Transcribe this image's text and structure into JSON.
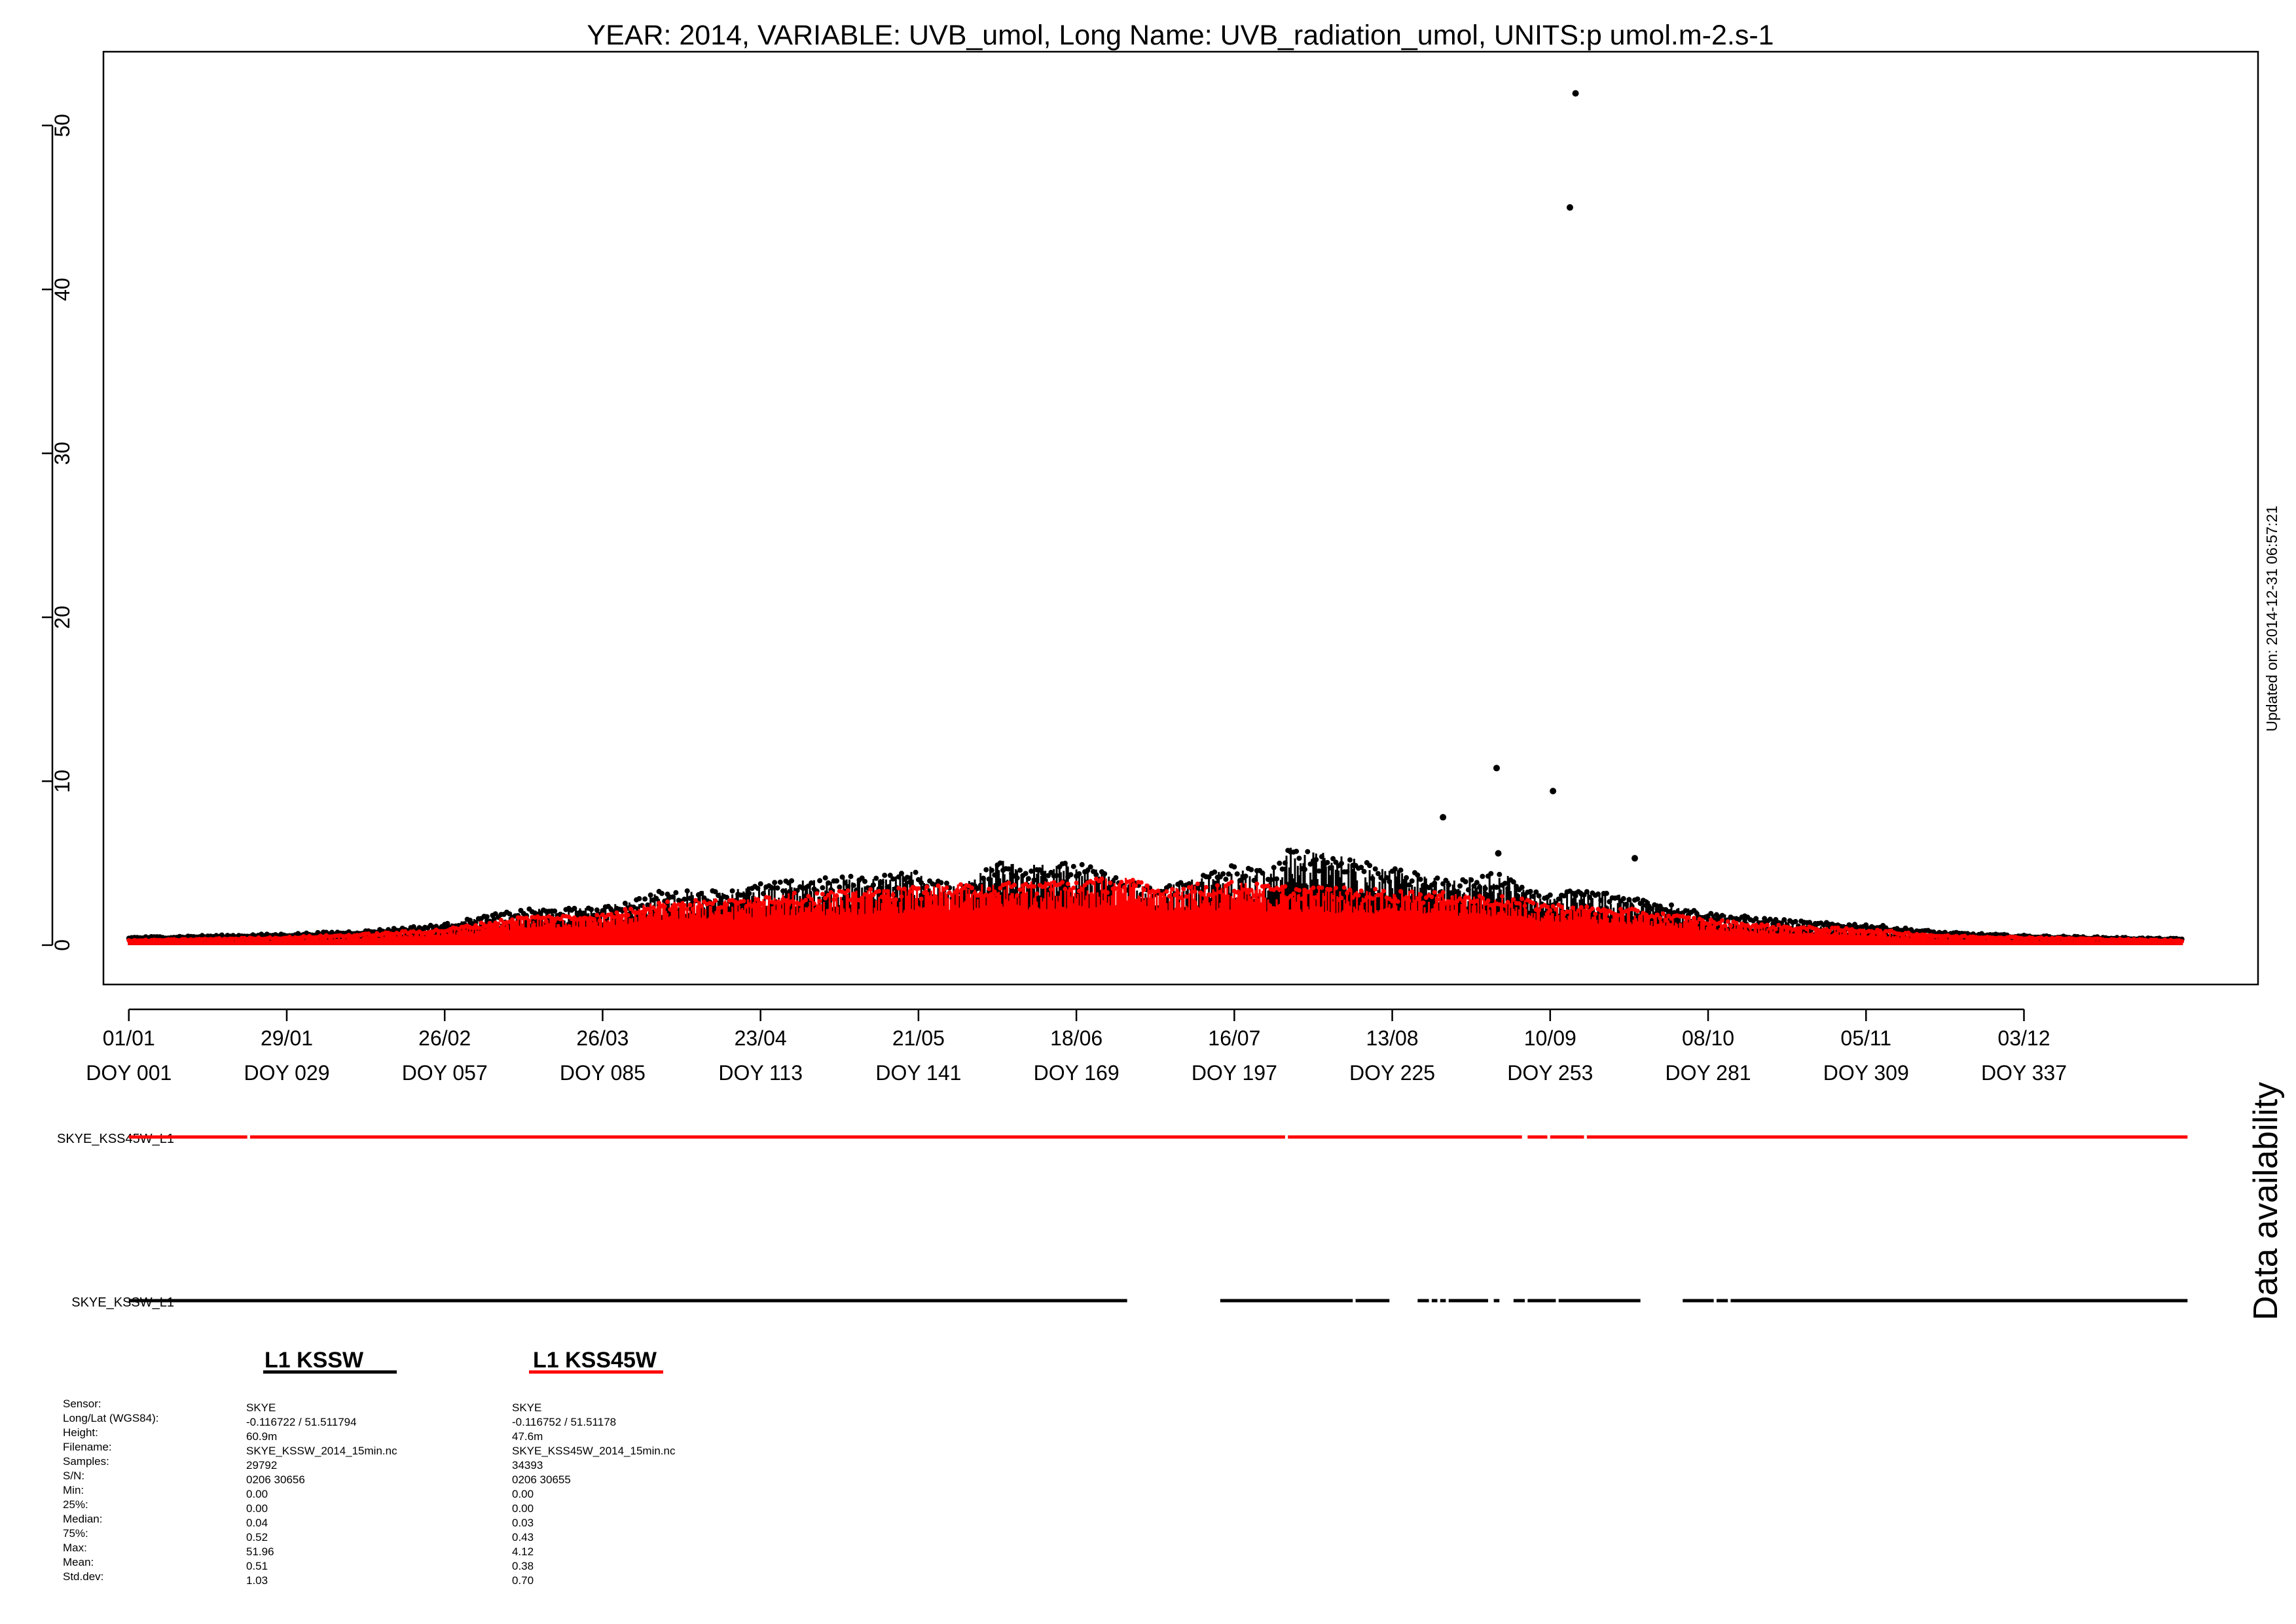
{
  "chart_data": {
    "type": "scatter",
    "title": "YEAR: 2014, VARIABLE: UVB_umol, Long Name: UVB_radiation_umol, UNITS:p umol.m-2.s-1",
    "updated": "Updated on: 2014-12-31 06:57:21",
    "ylim": [
      -2.4,
      54.5
    ],
    "yticks": [
      0,
      10,
      20,
      30,
      40,
      50
    ],
    "xlim": [
      -3.5,
      378.5
    ],
    "xticks": [
      {
        "doy": 1,
        "date": "01/01",
        "doy_label": "DOY 001"
      },
      {
        "doy": 29,
        "date": "29/01",
        "doy_label": "DOY 029"
      },
      {
        "doy": 57,
        "date": "26/02",
        "doy_label": "DOY 057"
      },
      {
        "doy": 85,
        "date": "26/03",
        "doy_label": "DOY 085"
      },
      {
        "doy": 113,
        "date": "23/04",
        "doy_label": "DOY 113"
      },
      {
        "doy": 141,
        "date": "21/05",
        "doy_label": "DOY 141"
      },
      {
        "doy": 169,
        "date": "18/06",
        "doy_label": "DOY 169"
      },
      {
        "doy": 197,
        "date": "16/07",
        "doy_label": "DOY 197"
      },
      {
        "doy": 225,
        "date": "13/08",
        "doy_label": "DOY 225"
      },
      {
        "doy": 253,
        "date": "10/09",
        "doy_label": "DOY 253"
      },
      {
        "doy": 281,
        "date": "08/10",
        "doy_label": "DOY 281"
      },
      {
        "doy": 309,
        "date": "05/11",
        "doy_label": "DOY 309"
      },
      {
        "doy": 337,
        "date": "03/12",
        "doy_label": "DOY 337"
      }
    ],
    "grid": false,
    "series": [
      {
        "name": "L1 KSSW",
        "color": "#000000",
        "daily_max_envelope": [
          [
            1,
            0.5
          ],
          [
            15,
            0.6
          ],
          [
            29,
            0.7
          ],
          [
            43,
            0.9
          ],
          [
            57,
            1.3
          ],
          [
            64,
            1.8
          ],
          [
            71,
            2.2
          ],
          [
            85,
            2.3
          ],
          [
            95,
            3.3
          ],
          [
            108,
            3.4
          ],
          [
            113,
            3.8
          ],
          [
            127,
            4.2
          ],
          [
            141,
            4.5
          ],
          [
            148,
            3.5
          ],
          [
            155,
            5.2
          ],
          [
            165,
            5.0
          ],
          [
            169,
            5.1
          ],
          [
            178,
            4.0
          ],
          [
            183,
            3.5
          ],
          [
            197,
            5.0
          ],
          [
            203,
            4.5
          ],
          [
            207,
            6.0
          ],
          [
            218,
            5.5
          ],
          [
            225,
            4.7
          ],
          [
            235,
            4.0
          ],
          [
            245,
            4.5
          ],
          [
            252,
            3.0
          ],
          [
            258,
            3.5
          ],
          [
            268,
            3.0
          ],
          [
            281,
            2.0
          ],
          [
            290,
            1.7
          ],
          [
            300,
            1.4
          ],
          [
            309,
            1.3
          ],
          [
            323,
            0.8
          ],
          [
            337,
            0.6
          ],
          [
            365,
            0.4
          ]
        ],
        "outliers": [
          [
            256.5,
            45.0
          ],
          [
            257.5,
            51.96
          ],
          [
            243.5,
            10.8
          ],
          [
            253.5,
            9.4
          ],
          [
            234.0,
            7.8
          ],
          [
            243.8,
            5.6
          ],
          [
            268.0,
            5.3
          ]
        ]
      },
      {
        "name": "L1 KSS45W",
        "color": "#ff0000",
        "daily_max_envelope": [
          [
            1,
            0.3
          ],
          [
            15,
            0.4
          ],
          [
            29,
            0.5
          ],
          [
            43,
            0.7
          ],
          [
            57,
            1.0
          ],
          [
            64,
            1.4
          ],
          [
            71,
            1.8
          ],
          [
            85,
            1.9
          ],
          [
            95,
            2.7
          ],
          [
            108,
            2.8
          ],
          [
            113,
            3.1
          ],
          [
            127,
            3.3
          ],
          [
            141,
            3.6
          ],
          [
            155,
            3.8
          ],
          [
            165,
            4.0
          ],
          [
            169,
            4.1
          ],
          [
            178,
            4.12
          ],
          [
            183,
            3.6
          ],
          [
            197,
            3.9
          ],
          [
            203,
            3.7
          ],
          [
            210,
            3.6
          ],
          [
            225,
            3.4
          ],
          [
            235,
            3.2
          ],
          [
            245,
            3.0
          ],
          [
            252,
            2.6
          ],
          [
            258,
            2.4
          ],
          [
            268,
            2.2
          ],
          [
            281,
            1.6
          ],
          [
            290,
            1.3
          ],
          [
            300,
            1.1
          ],
          [
            309,
            1.0
          ],
          [
            323,
            0.6
          ],
          [
            337,
            0.5
          ],
          [
            365,
            0.3
          ]
        ]
      }
    ]
  },
  "availability": {
    "title": "Data availability",
    "rows": [
      {
        "label": "SKYE_KSS45W_L1",
        "color": "#ff0000",
        "segments": [
          [
            1,
            22
          ],
          [
            22.5,
            206
          ],
          [
            206.5,
            248
          ],
          [
            249,
            252.5
          ],
          [
            253,
            259
          ],
          [
            259.5,
            366
          ]
        ]
      },
      {
        "label": "SKYE_KSSW_L1",
        "color": "#000000",
        "segments": [
          [
            1,
            178
          ],
          [
            194.5,
            218
          ],
          [
            218.5,
            224.5
          ],
          [
            229.5,
            231.5
          ],
          [
            232,
            233
          ],
          [
            233.5,
            234.5
          ],
          [
            235,
            242
          ],
          [
            243,
            244
          ],
          [
            246.5,
            248.5
          ],
          [
            249,
            254
          ],
          [
            254.5,
            259
          ],
          [
            259,
            269
          ],
          [
            276.5,
            282
          ],
          [
            282.5,
            284.5
          ],
          [
            285,
            366
          ]
        ]
      }
    ]
  },
  "legend": {
    "sensors": [
      {
        "name": "L1 KSSW",
        "color": "#000000"
      },
      {
        "name": "L1 KSS45W",
        "color": "#ff0000"
      }
    ]
  },
  "stats": {
    "labels": [
      "Sensor:",
      "Long/Lat (WGS84):",
      "Height:",
      "Filename:",
      "Samples:",
      "S/N:",
      "Min:",
      "25%:",
      "Median:",
      "75%:",
      "Max:",
      "Mean:",
      "Std.dev:"
    ],
    "columns": [
      [
        "SKYE",
        "-0.116722 / 51.511794",
        "60.9m",
        "SKYE_KSSW_2014_15min.nc",
        "29792",
        "0206 30656",
        "0.00",
        "0.00",
        "0.04",
        "0.52",
        "51.96",
        "0.51",
        "1.03"
      ],
      [
        "SKYE",
        "-0.116752 / 51.51178",
        "47.6m",
        "SKYE_KSS45W_2014_15min.nc",
        "34393",
        "0206 30655",
        "0.00",
        "0.00",
        "0.03",
        "0.43",
        "4.12",
        "0.38",
        "0.70"
      ]
    ]
  }
}
